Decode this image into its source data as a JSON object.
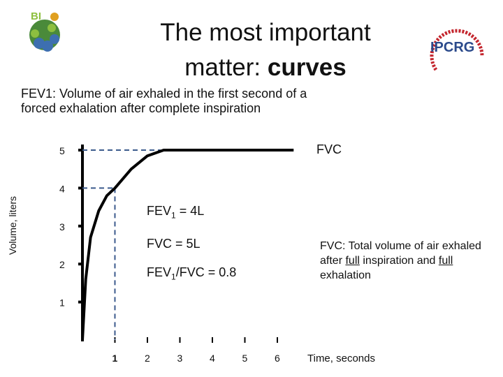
{
  "title": {
    "line1": "The most important",
    "line2_plain": "matter: ",
    "line2_bold": "curves"
  },
  "subtitle": "FEV1: Volume of air exhaled in the first second of a forced exhalation after complete inspiration",
  "fvc_tag": "FVC",
  "formulas": {
    "fev1_prefix": "FEV",
    "fev1_sub": "1",
    "fev1_suffix": " = 4L",
    "fvc": "FVC = 5L",
    "ratio_prefix": "FEV",
    "ratio_sub": "1",
    "ratio_suffix": "/FVC = 0.8"
  },
  "fvc_note": {
    "part1": "FVC: Total volume of air exhaled after ",
    "full1": "full",
    "part2": " inspiration and ",
    "full2": "full",
    "part3": " exhalation"
  },
  "x_axis_label": "Time, seconds",
  "y_axis_label": "Volume, liters",
  "colors": {
    "curve": "#000000",
    "dashed": "#3b5a8c",
    "axis": "#000000"
  },
  "chart_data": {
    "type": "line",
    "x_ticks": [
      "1",
      "2",
      "3",
      "4",
      "5",
      "6"
    ],
    "y_ticks": [
      "1",
      "2",
      "3",
      "4",
      "5"
    ],
    "curve": {
      "x": [
        0,
        0.1,
        0.25,
        0.5,
        0.75,
        1.0,
        1.5,
        2.0,
        2.5,
        3.0,
        6.5
      ],
      "y": [
        0,
        1.6,
        2.7,
        3.4,
        3.8,
        4.0,
        4.5,
        4.85,
        5.0,
        5.0,
        5.0
      ]
    },
    "markers": [
      {
        "x": 1,
        "y": 4,
        "label": "FEV1"
      },
      {
        "y": 5,
        "label": "FVC"
      }
    ],
    "xlim": [
      0,
      6.5
    ],
    "ylim": [
      0,
      5.2
    ]
  }
}
